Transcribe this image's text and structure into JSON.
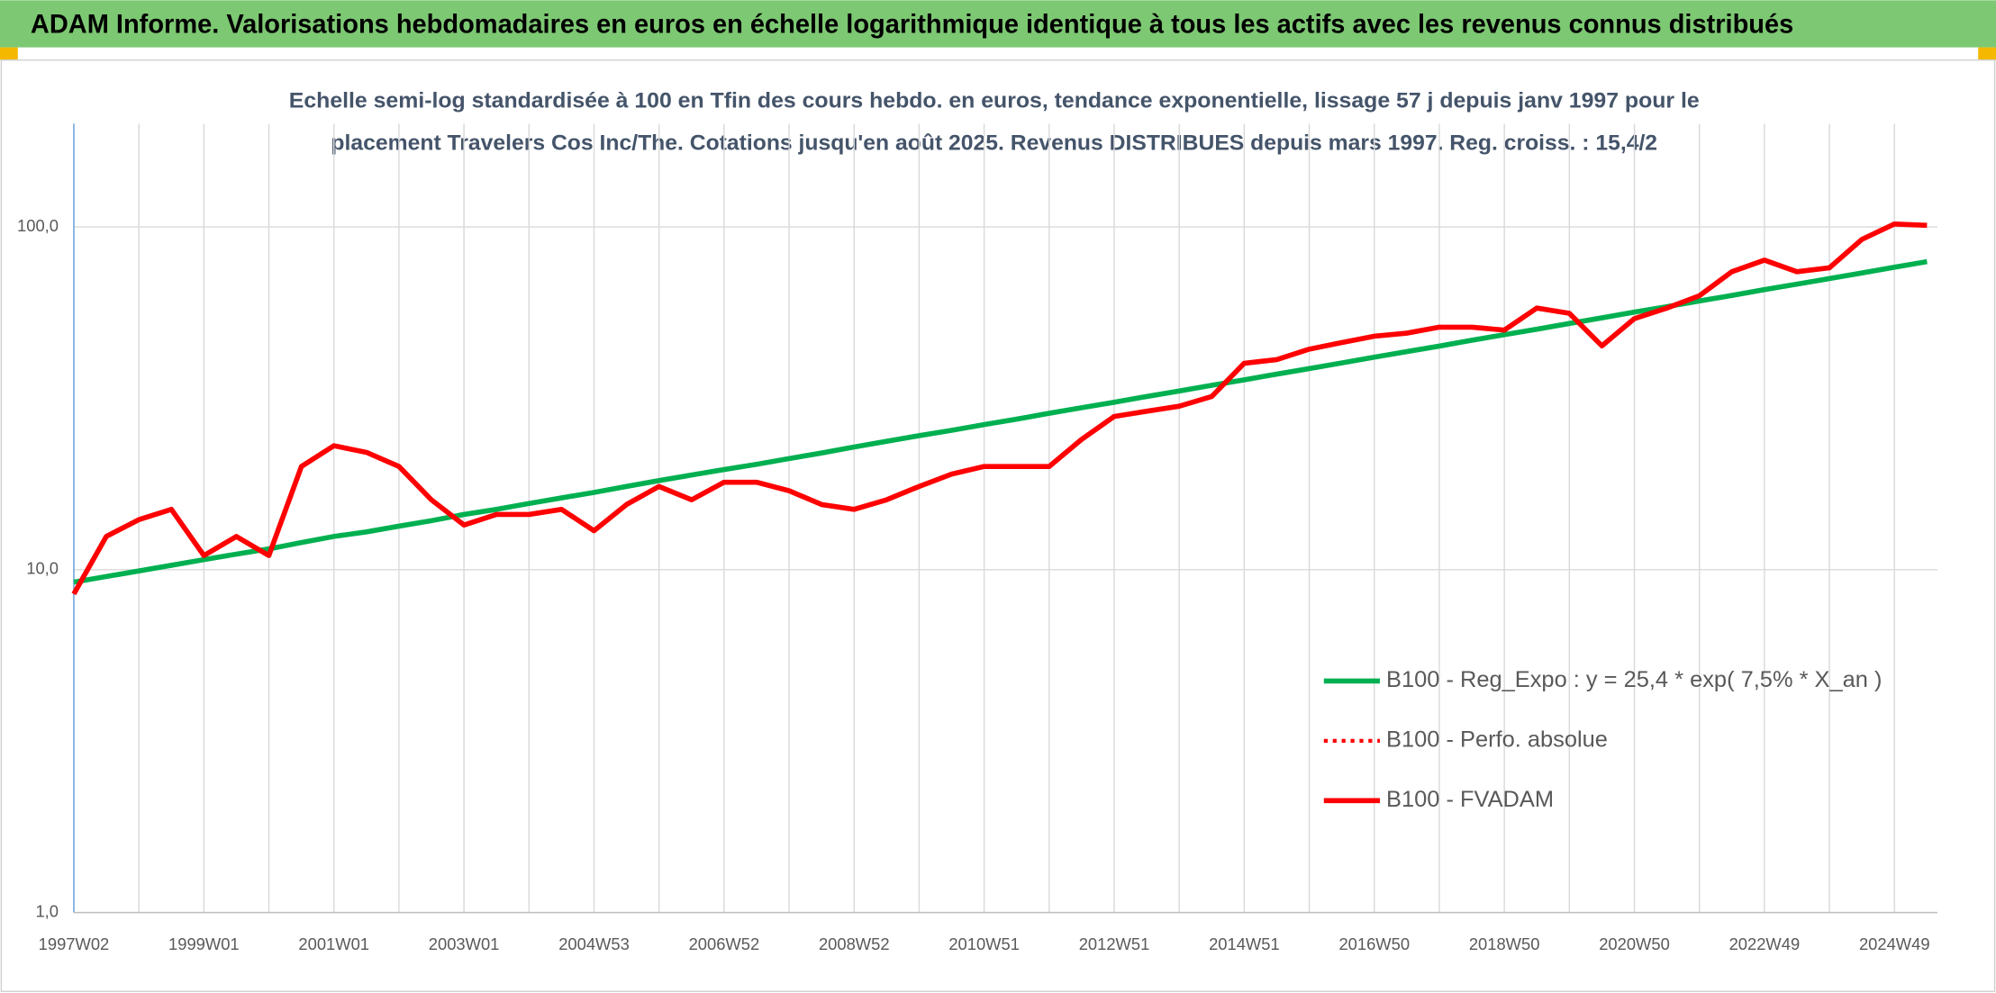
{
  "chart_data": {
    "type": "line",
    "title": "ADAM Informe. Valorisations hebdomadaires en euros en échelle logarithmique identique à tous les actifs avec les revenus connus distribués",
    "subtitle": [
      "Echelle semi-log standardisée à 100 en Tfin des cours hebdo. en euros, tendance exponentielle, lissage 57 j depuis janv 1997 pour le",
      "placement Travelers Cos Inc/The. Cotations jusqu'en août 2025. Revenus DISTRIBUES depuis mars 1997. Reg. croiss. : 15,4/2"
    ],
    "categories": [
      "1997W02",
      null,
      null,
      null,
      "1999W01",
      null,
      null,
      null,
      "2001W01",
      null,
      null,
      null,
      "2003W01",
      null,
      null,
      null,
      "2004W53",
      null,
      null,
      null,
      "2006W52",
      null,
      null,
      null,
      "2008W52",
      null,
      null,
      null,
      "2010W51",
      null,
      null,
      null,
      "2012W51",
      null,
      null,
      null,
      "2014W51",
      null,
      null,
      null,
      "2016W50",
      null,
      null,
      null,
      "2018W50",
      null,
      null,
      null,
      "2020W50",
      null,
      null,
      null,
      "2022W49",
      null,
      null,
      null,
      "2024W49",
      null
    ],
    "series": [
      {
        "name": "B100 - Reg_Expo : y = 25,4 * exp( 7,5% *  X_an )",
        "color": "#00b050",
        "style": "solid",
        "values": [
          9.2,
          9.55,
          9.92,
          10.3,
          10.7,
          11.1,
          11.5,
          12.0,
          12.5,
          12.9,
          13.4,
          13.9,
          14.5,
          15.0,
          15.6,
          16.2,
          16.8,
          17.5,
          18.2,
          18.9,
          19.6,
          20.3,
          21.1,
          21.9,
          22.8,
          23.7,
          24.6,
          25.5,
          26.5,
          27.5,
          28.6,
          29.7,
          30.8,
          32.0,
          33.2,
          34.5,
          35.8,
          37.2,
          38.6,
          40.1,
          41.7,
          43.3,
          44.9,
          46.7,
          48.5,
          50.3,
          52.3,
          54.3,
          56.4,
          58.5,
          60.8,
          63.1,
          65.6,
          68.1,
          70.7,
          73.4,
          76.3,
          79.2
        ]
      },
      {
        "name": "B100 - Perfo. absolue",
        "color": "#ff0000",
        "style": "dotted",
        "values": [
          8.5,
          12.5,
          14,
          15,
          11,
          12.5,
          11,
          20,
          23,
          22,
          20,
          16,
          13.5,
          14.5,
          14.5,
          15,
          13,
          15.5,
          17.5,
          16,
          18,
          18,
          17,
          15.5,
          15,
          16,
          17.5,
          19,
          20,
          20,
          20,
          24,
          28,
          29,
          30,
          32,
          40,
          41,
          44,
          46,
          48,
          49,
          51,
          51,
          50,
          58,
          56,
          45,
          54,
          58,
          63,
          74,
          80,
          74,
          76,
          92,
          102,
          101
        ]
      },
      {
        "name": "B100 - FVADAM",
        "color": "#ff0000",
        "style": "solid",
        "values": [
          8.5,
          12.5,
          14,
          15,
          11,
          12.5,
          11,
          20,
          23,
          22,
          20,
          16,
          13.5,
          14.5,
          14.5,
          15,
          13,
          15.5,
          17.5,
          16,
          18,
          18,
          17,
          15.5,
          15,
          16,
          17.5,
          19,
          20,
          20,
          20,
          24,
          28,
          29,
          30,
          32,
          40,
          41,
          44,
          46,
          48,
          49,
          51,
          51,
          50,
          58,
          56,
          45,
          54,
          58,
          63,
          74,
          80,
          74,
          76,
          92,
          102,
          101
        ]
      }
    ],
    "ylim": [
      1,
      200
    ],
    "log_y": true,
    "yticks": [
      {
        "value": 1,
        "label": "1,0"
      },
      {
        "value": 10,
        "label": "10,0"
      },
      {
        "value": 100,
        "label": "100,0"
      }
    ],
    "grid": true,
    "legend": "lower right"
  }
}
